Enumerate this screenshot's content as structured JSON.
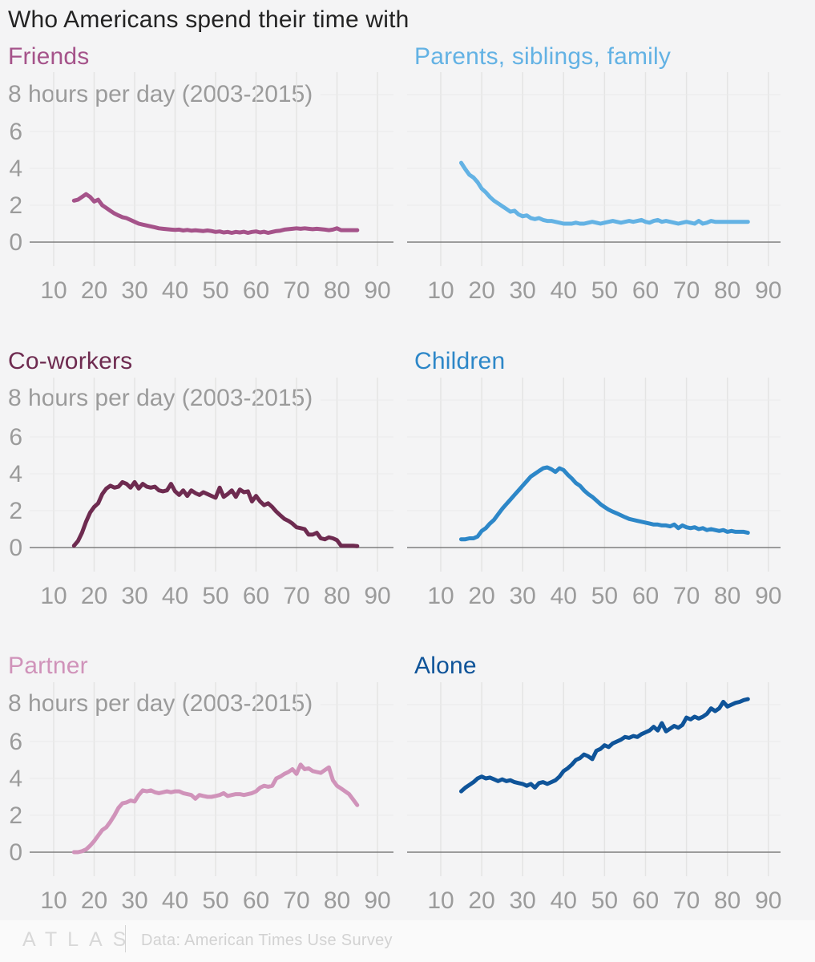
{
  "header": {
    "title": "Who Americans spend their time with"
  },
  "footer": {
    "logo": "ATLAS",
    "source": "Data: American Times Use Survey"
  },
  "chart_data": {
    "type": "line",
    "unit_label": "8 hours per day (2003-2015)",
    "x_ticks": [
      10,
      20,
      30,
      40,
      50,
      60,
      70,
      80,
      90
    ],
    "y_ticks": [
      0,
      2,
      4,
      6
    ],
    "y_max": 8,
    "x_range_note": "ages 15 to 85, step 1",
    "age_start": 15,
    "age_step": 1,
    "grid": true,
    "axis_color": "#7e7e7e",
    "grid_color_v": "#e4e4e4",
    "grid_color_h": "#eaeaea",
    "tick_color": "#9b9b9b",
    "series": [
      {
        "name": "Friends",
        "color": "#a5538a",
        "values": [
          2.25,
          2.3,
          2.45,
          2.6,
          2.45,
          2.2,
          2.3,
          2.0,
          1.85,
          1.7,
          1.55,
          1.45,
          1.35,
          1.3,
          1.2,
          1.1,
          1.0,
          0.95,
          0.9,
          0.85,
          0.8,
          0.75,
          0.72,
          0.7,
          0.68,
          0.66,
          0.68,
          0.63,
          0.66,
          0.62,
          0.64,
          0.62,
          0.6,
          0.63,
          0.6,
          0.55,
          0.58,
          0.52,
          0.55,
          0.5,
          0.55,
          0.52,
          0.56,
          0.5,
          0.55,
          0.58,
          0.52,
          0.56,
          0.5,
          0.55,
          0.6,
          0.62,
          0.68,
          0.7,
          0.72,
          0.75,
          0.72,
          0.75,
          0.72,
          0.7,
          0.72,
          0.7,
          0.68,
          0.65,
          0.68,
          0.75,
          0.65,
          0.65,
          0.65,
          0.65,
          0.65
        ]
      },
      {
        "name": "Parents, siblings, family",
        "color": "#63b2e4",
        "values": [
          4.3,
          3.95,
          3.65,
          3.5,
          3.25,
          2.9,
          2.7,
          2.45,
          2.25,
          2.1,
          1.95,
          1.8,
          1.65,
          1.7,
          1.5,
          1.4,
          1.45,
          1.3,
          1.25,
          1.3,
          1.2,
          1.15,
          1.15,
          1.1,
          1.05,
          1.0,
          1.0,
          1.0,
          1.05,
          1.0,
          1.0,
          1.05,
          1.1,
          1.05,
          1.0,
          1.05,
          1.1,
          1.15,
          1.1,
          1.05,
          1.1,
          1.15,
          1.1,
          1.15,
          1.2,
          1.1,
          1.05,
          1.15,
          1.2,
          1.1,
          1.15,
          1.1,
          1.05,
          1.0,
          1.05,
          1.1,
          1.05,
          1.0,
          1.15,
          1.0,
          1.05,
          1.15,
          1.1,
          1.1,
          1.1,
          1.1,
          1.1,
          1.1,
          1.1,
          1.1,
          1.1
        ]
      },
      {
        "name": "Co-workers",
        "color": "#6e2b50",
        "values": [
          0.1,
          0.35,
          0.8,
          1.4,
          1.9,
          2.2,
          2.4,
          2.9,
          3.2,
          3.35,
          3.25,
          3.3,
          3.55,
          3.45,
          3.25,
          3.55,
          3.2,
          3.45,
          3.3,
          3.25,
          3.3,
          3.1,
          3.05,
          3.1,
          3.45,
          3.05,
          2.85,
          3.1,
          2.8,
          3.1,
          2.95,
          2.85,
          3.0,
          2.9,
          2.8,
          2.7,
          3.25,
          2.75,
          2.9,
          3.1,
          2.75,
          3.15,
          3.0,
          3.05,
          2.5,
          2.8,
          2.5,
          2.3,
          2.4,
          2.2,
          1.95,
          1.75,
          1.55,
          1.45,
          1.3,
          1.1,
          1.05,
          1.0,
          0.7,
          0.7,
          0.8,
          0.5,
          0.45,
          0.55,
          0.5,
          0.4,
          0.1,
          0.1,
          0.1,
          0.1,
          0.08
        ]
      },
      {
        "name": "Children",
        "color": "#2d87c8",
        "values": [
          0.45,
          0.45,
          0.5,
          0.5,
          0.6,
          0.9,
          1.05,
          1.3,
          1.5,
          1.8,
          2.1,
          2.35,
          2.6,
          2.85,
          3.1,
          3.35,
          3.6,
          3.85,
          4.0,
          4.15,
          4.3,
          4.35,
          4.25,
          4.1,
          4.3,
          4.2,
          3.95,
          3.75,
          3.5,
          3.35,
          3.1,
          2.9,
          2.75,
          2.55,
          2.35,
          2.2,
          2.05,
          1.95,
          1.85,
          1.75,
          1.65,
          1.55,
          1.5,
          1.45,
          1.4,
          1.35,
          1.3,
          1.25,
          1.25,
          1.2,
          1.2,
          1.15,
          1.25,
          1.05,
          1.2,
          1.1,
          1.05,
          1.1,
          1.0,
          1.05,
          0.95,
          1.0,
          0.95,
          0.9,
          0.95,
          0.85,
          0.9,
          0.85,
          0.85,
          0.85,
          0.8
        ]
      },
      {
        "name": "Partner",
        "color": "#d093ba",
        "values": [
          0.0,
          0.0,
          0.05,
          0.15,
          0.35,
          0.6,
          0.9,
          1.2,
          1.35,
          1.65,
          2.0,
          2.4,
          2.65,
          2.7,
          2.8,
          2.75,
          3.1,
          3.35,
          3.3,
          3.35,
          3.25,
          3.2,
          3.25,
          3.3,
          3.25,
          3.3,
          3.3,
          3.2,
          3.15,
          3.1,
          2.9,
          3.1,
          3.05,
          3.0,
          3.0,
          3.05,
          3.1,
          3.2,
          3.05,
          3.1,
          3.15,
          3.15,
          3.1,
          3.15,
          3.2,
          3.3,
          3.5,
          3.6,
          3.55,
          3.6,
          4.0,
          4.1,
          4.25,
          4.35,
          4.5,
          4.25,
          4.75,
          4.5,
          4.55,
          4.4,
          4.35,
          4.3,
          4.45,
          4.6,
          3.9,
          3.6,
          3.45,
          3.3,
          3.15,
          2.85,
          2.55
        ]
      },
      {
        "name": "Alone",
        "color": "#0f5499",
        "values": [
          3.3,
          3.5,
          3.65,
          3.8,
          4.0,
          4.1,
          4.0,
          4.05,
          3.95,
          3.85,
          3.95,
          3.85,
          3.9,
          3.8,
          3.75,
          3.7,
          3.6,
          3.7,
          3.5,
          3.75,
          3.8,
          3.7,
          3.8,
          3.9,
          4.1,
          4.4,
          4.55,
          4.75,
          5.0,
          5.1,
          5.3,
          5.2,
          5.05,
          5.5,
          5.6,
          5.8,
          5.7,
          5.9,
          6.0,
          6.1,
          6.25,
          6.2,
          6.3,
          6.25,
          6.4,
          6.5,
          6.6,
          6.8,
          6.6,
          7.0,
          6.55,
          6.7,
          6.85,
          6.75,
          6.9,
          7.3,
          7.2,
          7.35,
          7.25,
          7.35,
          7.5,
          7.8,
          7.65,
          7.8,
          8.15,
          7.9,
          8.0,
          8.1,
          8.15,
          8.25,
          8.3
        ]
      }
    ]
  }
}
